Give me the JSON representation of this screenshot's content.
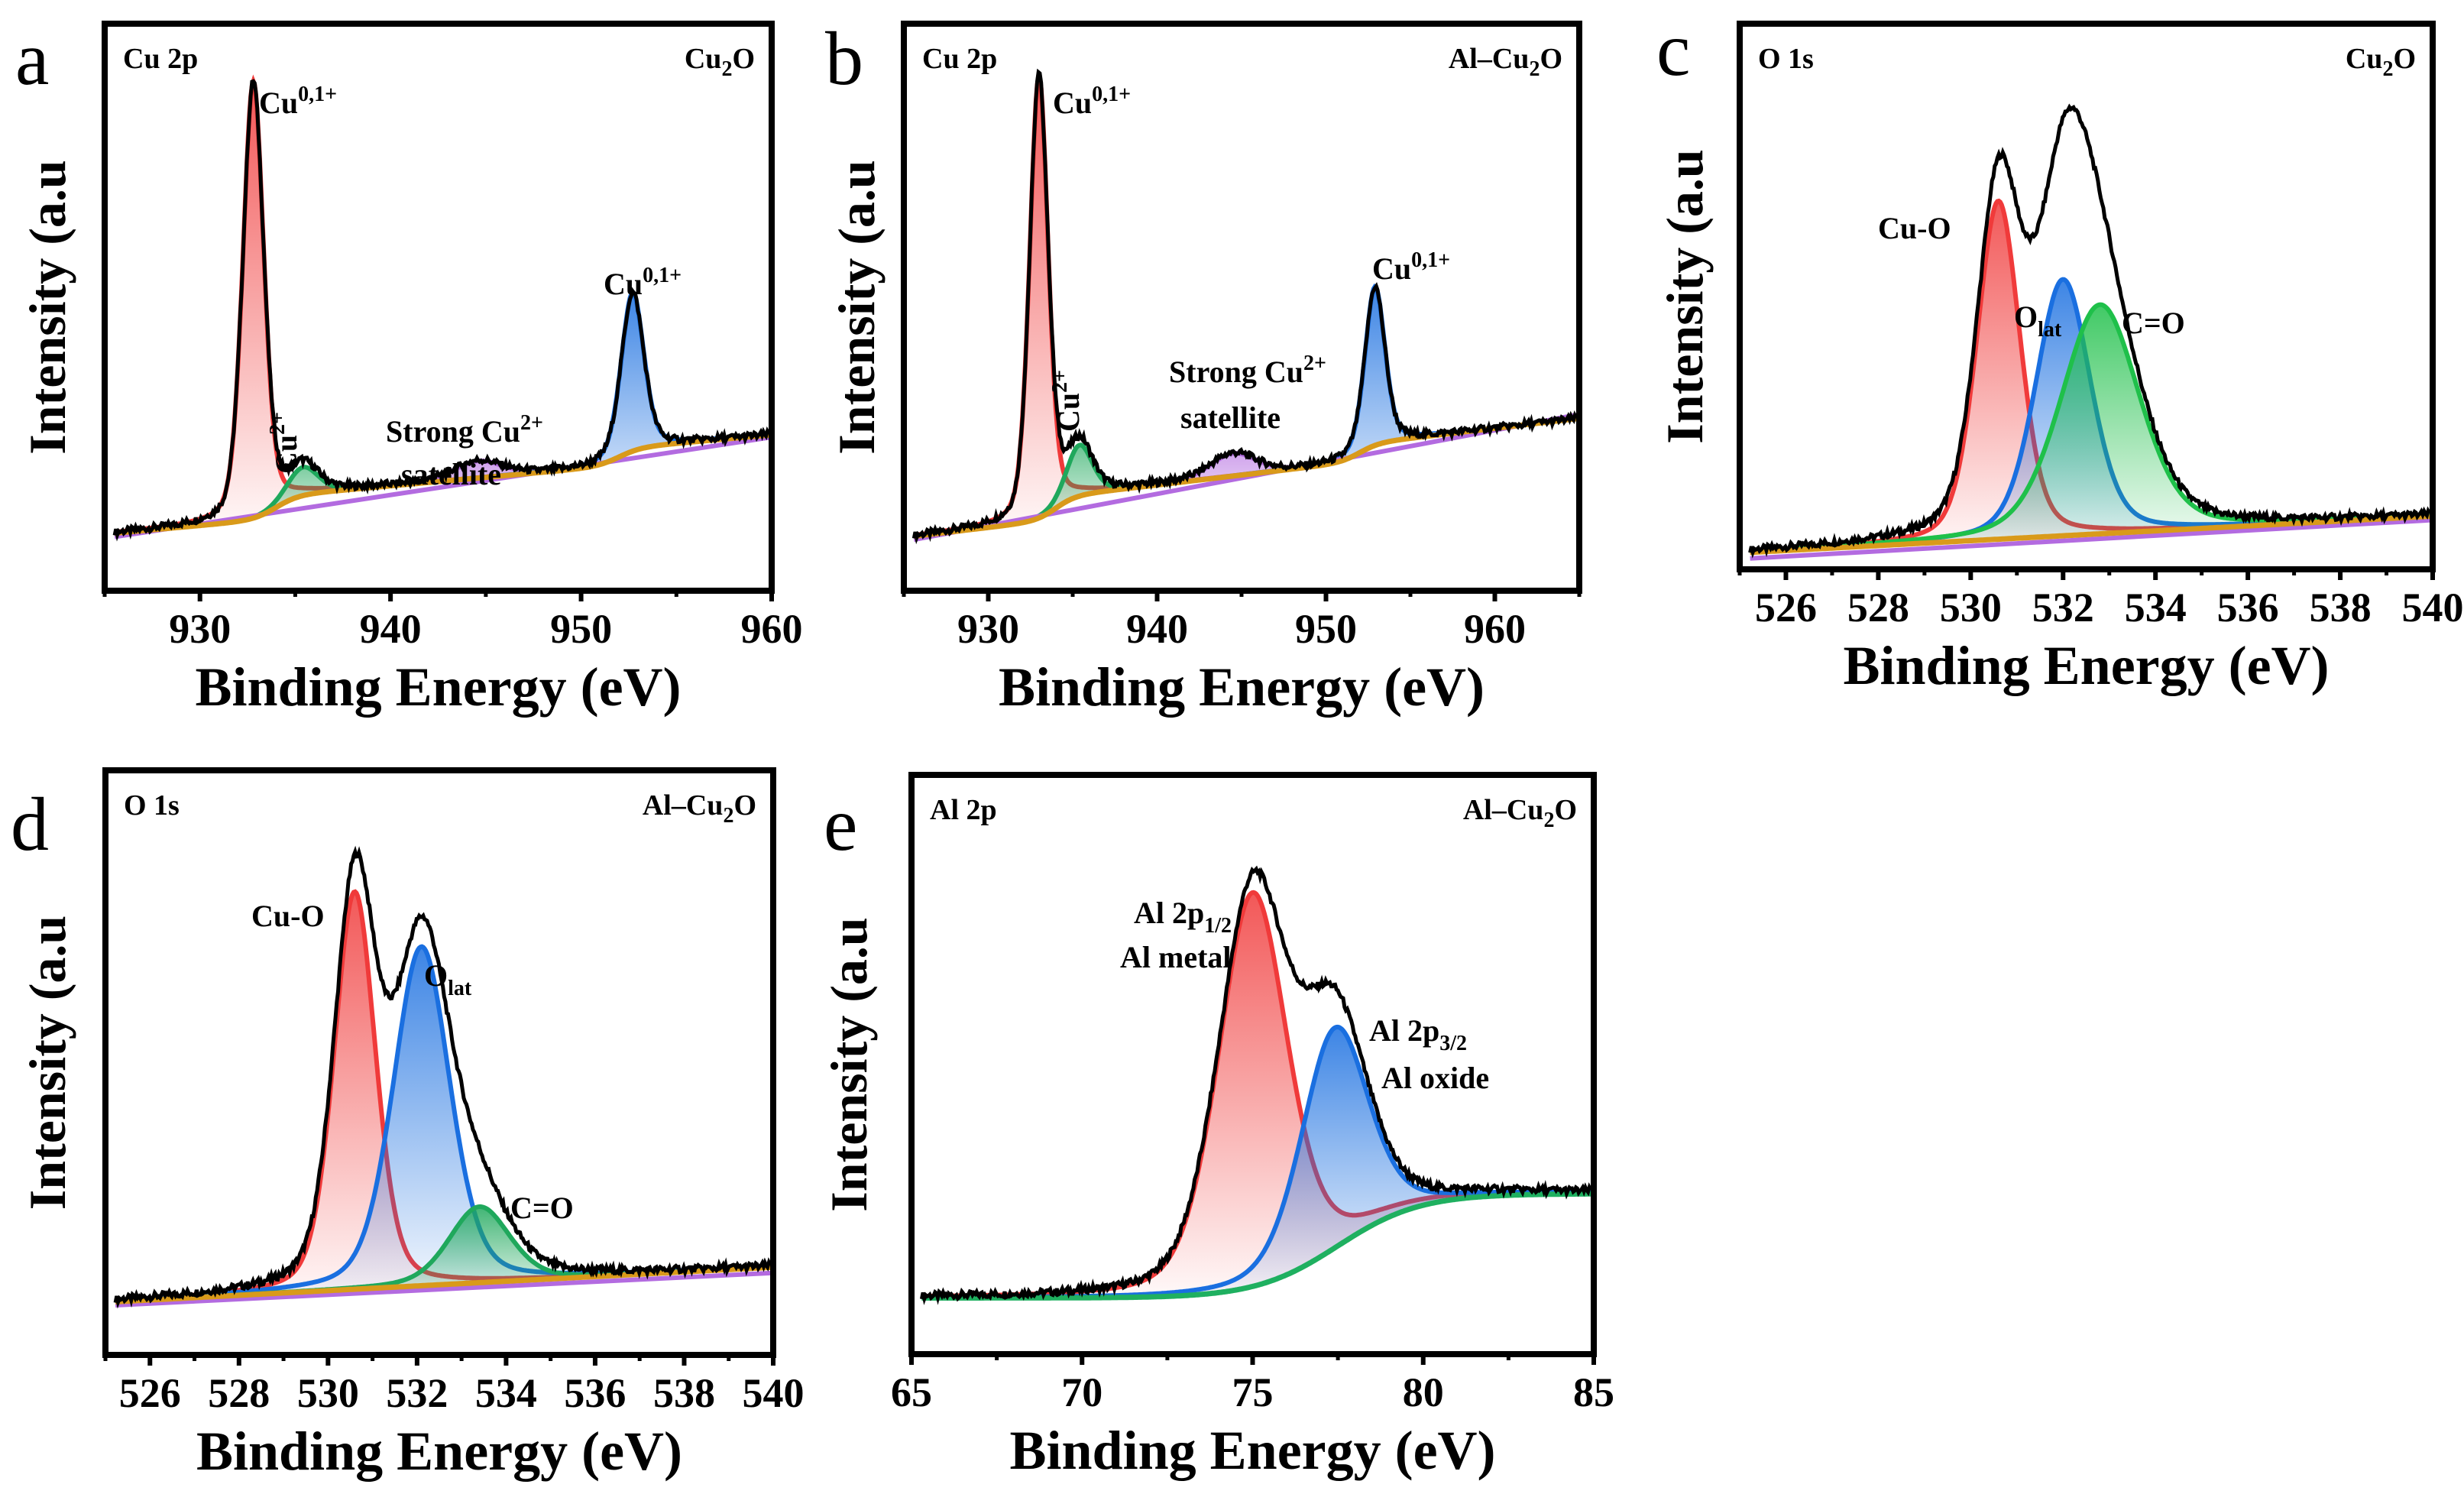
{
  "chart_data": [
    {
      "type": "line",
      "panel_letter": "a",
      "spectrum": "Cu 2p",
      "sample": {
        "base": "Cu",
        "sub": "2",
        "tail": "O"
      },
      "xlabel": "Binding Energy (eV)",
      "ylabel": "Intensity (a.u",
      "xlim": [
        925,
        960
      ],
      "ylim": [
        0,
        1
      ],
      "xticks": [
        930,
        940,
        950,
        960
      ],
      "background": {
        "start": 0.1,
        "slope": 0.003,
        "steps": [
          {
            "at": 934,
            "amp": 0.04,
            "w": 0.6
          },
          {
            "at": 952,
            "amp": 0.03,
            "w": 0.6
          }
        ]
      },
      "linear_bg": [
        0.095,
        0.27
      ],
      "components": [
        {
          "name": "Cu0,1+ 2p3/2",
          "center": 932.8,
          "fwhm": 1.3,
          "height": 0.77,
          "color": "#f03a3a"
        },
        {
          "name": "Cu2+",
          "center": 935.4,
          "fwhm": 1.9,
          "height": 0.05,
          "color": "#1fa85c"
        },
        {
          "name": "Cu2+ satellite",
          "center": 944.6,
          "fwhm": 3.0,
          "height": 0.03,
          "color": "#b36be0"
        },
        {
          "name": "Cu0,1+ 2p1/2",
          "center": 952.7,
          "fwhm": 1.4,
          "height": 0.28,
          "color": "#1a6fe0"
        }
      ],
      "annotations": [
        {
          "parts": [
            {
              "t": "Cu"
            },
            {
              "t": "0,1+",
              "s": "sup"
            }
          ]
        },
        {
          "parts": [
            {
              "t": "Cu"
            },
            {
              "t": "2+",
              "s": "sup"
            }
          ]
        },
        {
          "parts": [
            {
              "t": "Strong Cu"
            },
            {
              "t": "2+",
              "s": "sup"
            }
          ]
        },
        {
          "parts": [
            {
              "t": "satellite"
            }
          ]
        },
        {
          "parts": [
            {
              "t": "Cu"
            },
            {
              "t": "0,1+",
              "s": "sup"
            }
          ]
        }
      ]
    },
    {
      "type": "line",
      "panel_letter": "b",
      "spectrum": "Cu 2p",
      "sample": {
        "base": "Al–Cu",
        "sub": "2",
        "tail": "O"
      },
      "xlabel": "Binding Energy (eV)",
      "ylabel": "Intensity (a.u",
      "xlim": [
        925,
        965
      ],
      "ylim": [
        0,
        1
      ],
      "xticks": [
        930,
        940,
        950,
        960
      ],
      "background": {
        "start": 0.094,
        "slope": 0.0035,
        "steps": [
          {
            "at": 934,
            "amp": 0.04,
            "w": 0.6
          },
          {
            "at": 952,
            "amp": 0.03,
            "w": 0.6
          }
        ]
      },
      "linear_bg": [
        0.09,
        0.31
      ],
      "components": [
        {
          "name": "Cu0,1+ 2p3/2",
          "center": 933.0,
          "fwhm": 1.3,
          "height": 0.78,
          "color": "#f03a3a"
        },
        {
          "name": "Cu2+",
          "center": 935.4,
          "fwhm": 1.8,
          "height": 0.09,
          "color": "#1fa85c"
        },
        {
          "name": "Cu2+ satellite",
          "center": 944.5,
          "fwhm": 3.2,
          "height": 0.04,
          "color": "#b36be0"
        },
        {
          "name": "Cu0,1+ 2p1/2",
          "center": 952.9,
          "fwhm": 1.4,
          "height": 0.28,
          "color": "#1a6fe0"
        }
      ],
      "annotations": [
        {
          "parts": [
            {
              "t": "Cu"
            },
            {
              "t": "0,1+",
              "s": "sup"
            }
          ]
        },
        {
          "parts": [
            {
              "t": "Cu"
            },
            {
              "t": "2+",
              "s": "sup"
            }
          ]
        },
        {
          "parts": [
            {
              "t": "Strong Cu"
            },
            {
              "t": "2+",
              "s": "sup"
            }
          ]
        },
        {
          "parts": [
            {
              "t": "satellite"
            }
          ]
        },
        {
          "parts": [
            {
              "t": "Cu"
            },
            {
              "t": "0,1+",
              "s": "sup"
            }
          ]
        }
      ]
    },
    {
      "type": "line",
      "panel_letter": "c",
      "spectrum": "O 1s",
      "sample": {
        "base": "Cu",
        "sub": "2",
        "tail": "O"
      },
      "xlabel": "Binding Energy (eV)",
      "ylabel": "Intensity (a.u",
      "xlim": [
        525,
        540
      ],
      "ylim": [
        0,
        1
      ],
      "xticks": [
        526,
        528,
        530,
        532,
        534,
        536,
        538,
        540
      ],
      "background": {
        "start": 0.03,
        "slope": 0.0045,
        "steps": []
      },
      "linear_bg": [
        0.02,
        0.09
      ],
      "components": [
        {
          "name": "Cu-O",
          "center": 530.6,
          "fwhm": 1.1,
          "height": 0.62,
          "color": "#f03a3a"
        },
        {
          "name": "Olat",
          "center": 532.0,
          "fwhm": 1.4,
          "height": 0.47,
          "color": "#1a6fe0"
        },
        {
          "name": "C=O",
          "center": 532.8,
          "fwhm": 2.0,
          "height": 0.42,
          "color": "#1fc04a"
        }
      ],
      "annotations": [
        {
          "parts": [
            {
              "t": "Cu-O"
            }
          ]
        },
        {
          "parts": [
            {
              "t": "O"
            },
            {
              "t": "lat",
              "s": "sub"
            }
          ]
        },
        {
          "parts": [
            {
              "t": "C=O"
            }
          ]
        }
      ]
    },
    {
      "type": "line",
      "panel_letter": "d",
      "spectrum": "O 1s",
      "sample": {
        "base": "Al–Cu",
        "sub": "2",
        "tail": "O"
      },
      "xlabel": "Binding Energy (eV)",
      "ylabel": "Intensity (a.u",
      "xlim": [
        525,
        540
      ],
      "ylim": [
        0,
        1
      ],
      "xticks": [
        526,
        528,
        530,
        532,
        534,
        536,
        538,
        540
      ],
      "background": {
        "start": 0.09,
        "slope": 0.004,
        "steps": []
      },
      "linear_bg": [
        0.085,
        0.14
      ],
      "components": [
        {
          "name": "Cu-O",
          "center": 530.6,
          "fwhm": 1.1,
          "height": 0.68,
          "color": "#f03a3a"
        },
        {
          "name": "Olat",
          "center": 532.1,
          "fwhm": 1.5,
          "height": 0.58,
          "color": "#1a6fe0"
        },
        {
          "name": "C=O",
          "center": 533.4,
          "fwhm": 1.6,
          "height": 0.13,
          "color": "#1fa85c"
        }
      ],
      "annotations": [
        {
          "parts": [
            {
              "t": "Cu-O"
            }
          ]
        },
        {
          "parts": [
            {
              "t": "O"
            },
            {
              "t": "lat",
              "s": "sub"
            }
          ]
        },
        {
          "parts": [
            {
              "t": "C=O"
            }
          ]
        }
      ]
    },
    {
      "type": "line",
      "panel_letter": "e",
      "spectrum": "Al 2p",
      "sample": {
        "base": "Al–Cu",
        "sub": "2",
        "tail": "O"
      },
      "xlabel": "Binding Energy (eV)",
      "ylabel": "Intensity (a.u",
      "xlim": [
        65,
        85
      ],
      "ylim": [
        0,
        1
      ],
      "xticks": [
        65,
        70,
        75,
        80,
        85
      ],
      "background": {
        "start": 0.097,
        "slope": 0.0,
        "steps": [
          {
            "at": 77.5,
            "amp": 0.18,
            "w": 1.2
          }
        ]
      },
      "linear_bg": null,
      "bg_color": "#1fb060",
      "components": [
        {
          "name": "Al 2p1/2 Al metal",
          "center": 75.0,
          "fwhm": 2.4,
          "height": 0.68,
          "color": "#f03a3a"
        },
        {
          "name": "Al 2p3/2 Al oxide",
          "center": 77.4,
          "fwhm": 2.3,
          "height": 0.38,
          "color": "#1a6fe0"
        }
      ],
      "annotations": [
        {
          "parts": [
            {
              "t": "Al 2p"
            },
            {
              "t": "1/2",
              "s": "sub"
            }
          ]
        },
        {
          "parts": [
            {
              "t": "Al metal"
            }
          ]
        },
        {
          "parts": [
            {
              "t": "Al 2p"
            },
            {
              "t": "3/2",
              "s": "sub"
            }
          ]
        },
        {
          "parts": [
            {
              "t": "Al oxide"
            }
          ]
        }
      ]
    }
  ]
}
